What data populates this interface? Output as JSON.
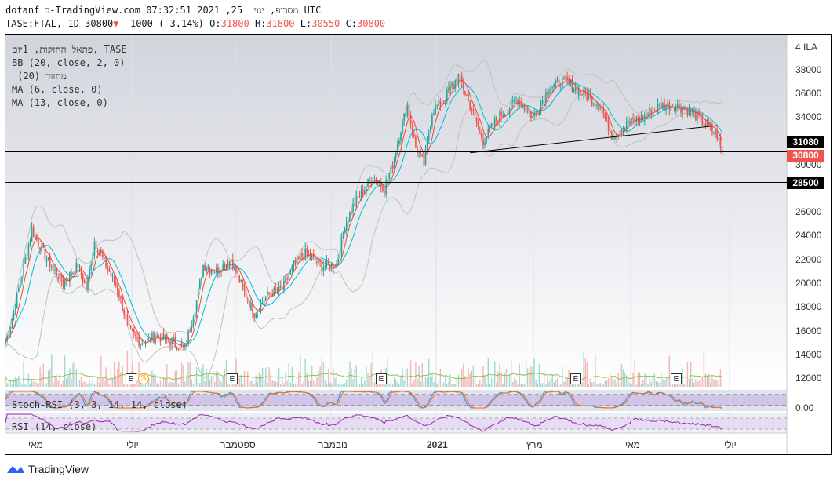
{
  "header": {
    "line1": "dotanf ב-TradingView.com מסרופ, ינוי  25, 2021 07:32:51 UTC",
    "symbol": "TASE:FTAL, 1D 30800",
    "arrow": "▼",
    "change": "-1000 (-3.14%)",
    "o_label": "O:",
    "o": "31800",
    "h_label": "H:",
    "h": "31800",
    "l_label": "L:",
    "l": "30550",
    "c_label": "C:",
    "c": "30800"
  },
  "legend": [
    "פתאל החזקות, 1יום, TASE",
    "BB (20, close, 2, 0)",
    " (20) מחזור",
    "MA (6, close, 0)",
    "MA (13, close, 0)"
  ],
  "indicators": {
    "stoch": "Stoch-RSI (3, 3, 14, 14, close)",
    "rsi": "RSI (14, close)",
    "stoch_value": "0.00"
  },
  "price_axis": {
    "currency": "4 ILA",
    "ticks": [
      "38000",
      "36000",
      "34000",
      "30000",
      "26000",
      "24000",
      "22000",
      "20000",
      "18000",
      "16000",
      "14000",
      "12000"
    ],
    "tags": [
      {
        "label": "31080",
        "color": "#000000"
      },
      {
        "label": "30800",
        "color": "#ef5350"
      },
      {
        "label": "28500",
        "color": "#000000"
      }
    ]
  },
  "time_axis": [
    "מאי",
    "יולי",
    "ספטמבר",
    "נובמבר",
    "2021",
    "מרץ",
    "מאי",
    "יולי"
  ],
  "events": {
    "earnings": [
      "E",
      "E",
      "E",
      "E",
      "E"
    ],
    "split": "S"
  },
  "branding": "TradingView",
  "colors": {
    "up": "#26a69a",
    "down": "#ef5350",
    "ma6": "#f44336",
    "ma13": "#00bcd4",
    "bb": "#c0c0c0",
    "volma": "#8bc34a"
  },
  "chart_data": {
    "type": "candlestick",
    "ylim": [
      11000,
      40000
    ],
    "anchors": [
      [
        0,
        15000
      ],
      [
        4,
        17000
      ],
      [
        16,
        24500
      ],
      [
        25,
        22000
      ],
      [
        35,
        20000
      ],
      [
        44,
        21500
      ],
      [
        49,
        19500
      ],
      [
        54,
        23500
      ],
      [
        61,
        21500
      ],
      [
        68,
        19500
      ],
      [
        75,
        16000
      ],
      [
        82,
        15000
      ],
      [
        92,
        15500
      ],
      [
        101,
        15000
      ],
      [
        109,
        14500
      ],
      [
        116,
        18500
      ],
      [
        120,
        21500
      ],
      [
        128,
        21000
      ],
      [
        137,
        22000
      ],
      [
        144,
        19500
      ],
      [
        151,
        17500
      ],
      [
        159,
        19000
      ],
      [
        168,
        19500
      ],
      [
        175,
        21500
      ],
      [
        182,
        22500
      ],
      [
        192,
        21500
      ],
      [
        201,
        21500
      ],
      [
        206,
        25000
      ],
      [
        213,
        27000
      ],
      [
        223,
        29000
      ],
      [
        230,
        28000
      ],
      [
        235,
        30000
      ],
      [
        240,
        33000
      ],
      [
        244,
        35000
      ],
      [
        249,
        31500
      ],
      [
        254,
        30000
      ],
      [
        259,
        34500
      ],
      [
        266,
        35500
      ],
      [
        275,
        37500
      ],
      [
        282,
        35000
      ],
      [
        290,
        32000
      ],
      [
        299,
        34000
      ],
      [
        311,
        35500
      ],
      [
        320,
        34000
      ],
      [
        330,
        36500
      ],
      [
        340,
        37000
      ],
      [
        351,
        36000
      ],
      [
        361,
        35000
      ],
      [
        368,
        32500
      ],
      [
        378,
        33500
      ],
      [
        387,
        34000
      ],
      [
        397,
        35000
      ],
      [
        406,
        35000
      ],
      [
        416,
        34500
      ],
      [
        428,
        33000
      ],
      [
        432,
        32500
      ],
      [
        435,
        30800
      ]
    ],
    "horizontal_lines": [
      31080,
      28500
    ],
    "trendline": [
      [
        282,
        31000
      ],
      [
        432,
        33300
      ]
    ]
  }
}
